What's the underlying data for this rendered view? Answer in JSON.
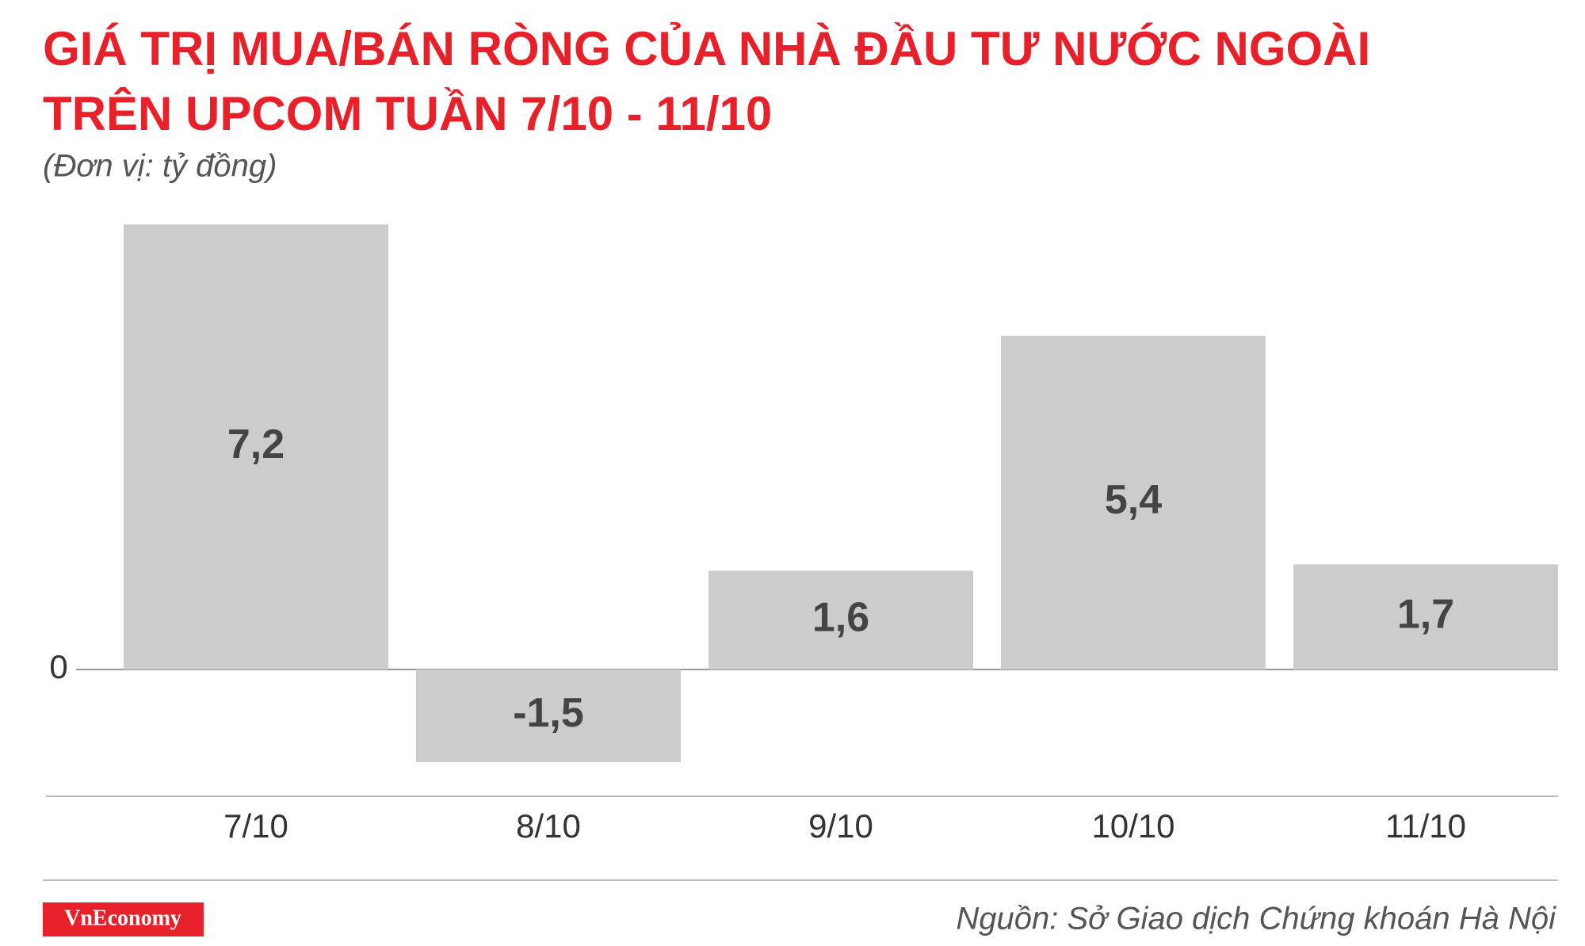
{
  "chart_data": {
    "type": "bar",
    "title": [
      "GIÁ TRỊ MUA/BÁN RÒNG CỦA NHÀ ĐẦU TƯ NƯỚC NGOÀI",
      "TRÊN UPCOM TUẦN 7/10 - 11/10"
    ],
    "subtitle": "(Đơn vị: tỷ đồng)",
    "categories": [
      "7/10",
      "8/10",
      "9/10",
      "10/10",
      "11/10"
    ],
    "values": [
      7.2,
      -1.5,
      1.6,
      5.4,
      1.7
    ],
    "value_labels": [
      "7,2",
      "-1,5",
      "1,6",
      "5,4",
      "1,7"
    ],
    "color": "#cccccc",
    "ylim": [
      -2,
      8
    ],
    "yticks": [
      0
    ],
    "grid": false,
    "brand": "VnEconomy",
    "source": "Nguồn: Sở Giao dịch Chứng khoán Hà Nội"
  }
}
